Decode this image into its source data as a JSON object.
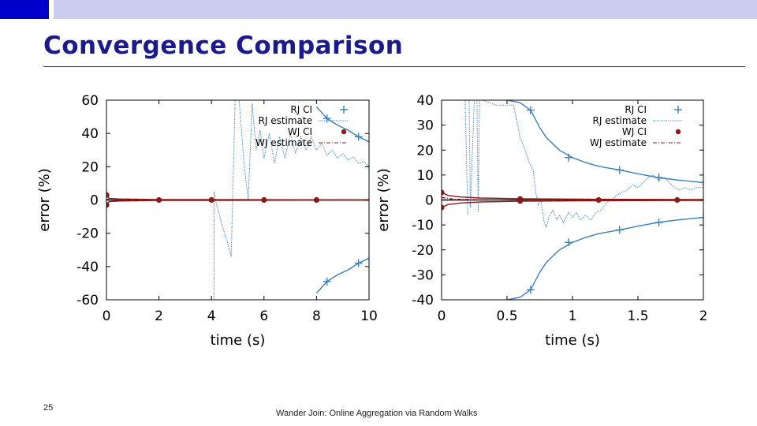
{
  "slide": {
    "title": "Convergence Comparison",
    "number": "25",
    "footer": "Wander Join: Online Aggregation via Random Walks"
  },
  "colors": {
    "accent_block": "#0000cc",
    "top_band": "#ccccee",
    "title": "#1a1a8c",
    "rj": "#3a7fbf",
    "wj": "#8b1a1a"
  },
  "chart_data": [
    {
      "type": "line",
      "xlabel": "time (s)",
      "ylabel": "error (%)",
      "xlim": [
        0,
        10
      ],
      "ylim": [
        -60,
        60
      ],
      "xticks": [
        0,
        2,
        4,
        6,
        8,
        10
      ],
      "yticks": [
        -60,
        -40,
        -20,
        0,
        20,
        40,
        60
      ],
      "grid": false,
      "legend_position": "top-right",
      "series": [
        {
          "name": "RJ CI",
          "style": "line-with-plus-markers",
          "color": "#3a7fbf",
          "upper": [
            [
              8.0,
              56
            ],
            [
              8.4,
              49
            ],
            [
              8.8,
              45
            ],
            [
              9.2,
              42
            ],
            [
              9.6,
              38
            ],
            [
              10.0,
              35
            ]
          ],
          "lower": [
            [
              8.0,
              -56
            ],
            [
              8.4,
              -49
            ],
            [
              8.8,
              -45
            ],
            [
              9.2,
              -42
            ],
            [
              9.6,
              -38
            ],
            [
              10.0,
              -35
            ]
          ],
          "markers": [
            [
              8.4,
              49
            ],
            [
              9.6,
              38
            ],
            [
              8.4,
              -49
            ],
            [
              9.6,
              -38
            ]
          ]
        },
        {
          "name": "RJ estimate",
          "style": "dotted",
          "color": "#3a7fbf",
          "points": [
            [
              4.0,
              -60
            ],
            [
              4.1,
              -60
            ],
            [
              4.1,
              5
            ],
            [
              4.15,
              0
            ],
            [
              4.4,
              -15
            ],
            [
              4.6,
              -25
            ],
            [
              4.75,
              -34
            ],
            [
              4.9,
              60
            ],
            [
              5.05,
              60
            ],
            [
              5.25,
              20
            ],
            [
              5.4,
              0
            ],
            [
              5.55,
              58
            ],
            [
              5.7,
              30
            ],
            [
              5.85,
              42
            ],
            [
              6.0,
              25
            ],
            [
              6.2,
              40
            ],
            [
              6.4,
              22
            ],
            [
              6.6,
              38
            ],
            [
              6.8,
              25
            ],
            [
              7.0,
              40
            ],
            [
              7.2,
              28
            ],
            [
              7.4,
              38
            ],
            [
              7.6,
              30
            ],
            [
              7.8,
              38
            ],
            [
              8.0,
              30
            ],
            [
              8.2,
              34
            ],
            [
              8.4,
              27
            ],
            [
              8.6,
              30
            ],
            [
              8.8,
              25
            ],
            [
              9.0,
              28
            ],
            [
              9.2,
              24
            ],
            [
              9.4,
              26
            ],
            [
              9.6,
              22
            ],
            [
              9.8,
              23
            ],
            [
              10.0,
              20
            ]
          ]
        },
        {
          "name": "WJ CI",
          "style": "line-with-dot-markers",
          "color": "#8b1a1a",
          "upper": [
            [
              0,
              3
            ],
            [
              0.1,
              1
            ],
            [
              0.5,
              0.6
            ],
            [
              2,
              0.3
            ],
            [
              10,
              0.1
            ]
          ],
          "lower": [
            [
              0,
              -3
            ],
            [
              0.1,
              -1
            ],
            [
              0.5,
              -0.6
            ],
            [
              2,
              -0.3
            ],
            [
              10,
              -0.1
            ]
          ],
          "markers": [
            [
              0,
              3
            ],
            [
              0,
              -3
            ],
            [
              2,
              0
            ],
            [
              4,
              0
            ],
            [
              6,
              0
            ],
            [
              8,
              0
            ]
          ]
        },
        {
          "name": "WJ estimate",
          "style": "dash-dot",
          "color": "#8b1a1a",
          "points": [
            [
              0,
              0.5
            ],
            [
              0.3,
              -0.3
            ],
            [
              1,
              0.1
            ],
            [
              10,
              0
            ]
          ]
        }
      ]
    },
    {
      "type": "line",
      "xlabel": "time (s)",
      "ylabel": "error (%)",
      "xlim": [
        0,
        2
      ],
      "ylim": [
        -40,
        40
      ],
      "xticks": [
        0,
        0.5,
        1,
        1.5,
        2
      ],
      "yticks": [
        -40,
        -30,
        -20,
        -10,
        0,
        10,
        20,
        30,
        40
      ],
      "grid": false,
      "legend_position": "top-right",
      "series": [
        {
          "name": "RJ CI",
          "style": "line-with-plus-markers",
          "color": "#3a7fbf",
          "upper": [
            [
              0.5,
              40
            ],
            [
              0.6,
              39
            ],
            [
              0.68,
              36
            ],
            [
              0.75,
              29
            ],
            [
              0.8,
              25
            ],
            [
              0.9,
              20
            ],
            [
              1.0,
              17
            ],
            [
              1.1,
              15
            ],
            [
              1.2,
              13.5
            ],
            [
              1.36,
              12
            ],
            [
              1.5,
              10.5
            ],
            [
              1.65,
              9
            ],
            [
              1.8,
              8
            ],
            [
              2.0,
              7
            ]
          ],
          "lower": [
            [
              0.5,
              -40
            ],
            [
              0.6,
              -39
            ],
            [
              0.68,
              -36
            ],
            [
              0.75,
              -29
            ],
            [
              0.8,
              -25
            ],
            [
              0.9,
              -20
            ],
            [
              1.0,
              -17
            ],
            [
              1.1,
              -15
            ],
            [
              1.2,
              -13.5
            ],
            [
              1.36,
              -12
            ],
            [
              1.5,
              -10.5
            ],
            [
              1.65,
              -9
            ],
            [
              1.8,
              -8
            ],
            [
              2.0,
              -7
            ]
          ],
          "markers": [
            [
              0.68,
              36
            ],
            [
              0.97,
              17
            ],
            [
              1.36,
              12
            ],
            [
              1.66,
              9
            ],
            [
              2.0,
              7
            ],
            [
              0.68,
              -36
            ],
            [
              0.97,
              -17
            ],
            [
              1.36,
              -12
            ],
            [
              1.66,
              -9
            ],
            [
              2.0,
              -7
            ]
          ]
        },
        {
          "name": "RJ estimate",
          "style": "dotted",
          "color": "#3a7fbf",
          "points": [
            [
              0.2,
              -6
            ],
            [
              0.18,
              40
            ],
            [
              0.21,
              40
            ],
            [
              0.22,
              -3
            ],
            [
              0.25,
              40
            ],
            [
              0.27,
              40
            ],
            [
              0.28,
              -5
            ],
            [
              0.29,
              40
            ],
            [
              0.31,
              40
            ],
            [
              0.42,
              38
            ],
            [
              0.55,
              38
            ],
            [
              0.6,
              25
            ],
            [
              0.64,
              20
            ],
            [
              0.67,
              15
            ],
            [
              0.7,
              12
            ],
            [
              0.72,
              3
            ],
            [
              0.74,
              -2
            ],
            [
              0.76,
              0
            ],
            [
              0.78,
              -8
            ],
            [
              0.8,
              -11
            ],
            [
              0.82,
              -7
            ],
            [
              0.85,
              -4
            ],
            [
              0.88,
              -8
            ],
            [
              0.9,
              -6
            ],
            [
              0.93,
              -9
            ],
            [
              0.97,
              -5
            ],
            [
              1.0,
              -7
            ],
            [
              1.03,
              -5
            ],
            [
              1.06,
              -8
            ],
            [
              1.1,
              -6
            ],
            [
              1.14,
              -8
            ],
            [
              1.18,
              -5
            ],
            [
              1.22,
              -4
            ],
            [
              1.26,
              -1
            ],
            [
              1.3,
              0
            ],
            [
              1.34,
              2
            ],
            [
              1.38,
              3
            ],
            [
              1.42,
              4
            ],
            [
              1.46,
              6
            ],
            [
              1.5,
              5
            ],
            [
              1.54,
              7
            ],
            [
              1.58,
              9
            ],
            [
              1.62,
              10
            ],
            [
              1.66,
              8
            ],
            [
              1.7,
              9
            ],
            [
              1.74,
              7
            ],
            [
              1.78,
              5
            ],
            [
              1.82,
              4
            ],
            [
              1.86,
              5
            ],
            [
              1.9,
              4
            ],
            [
              1.95,
              5
            ],
            [
              2.0,
              5
            ]
          ]
        },
        {
          "name": "WJ CI",
          "style": "line-with-dot-markers",
          "color": "#8b1a1a",
          "upper": [
            [
              0,
              3
            ],
            [
              0.05,
              1.8
            ],
            [
              0.15,
              1.2
            ],
            [
              0.3,
              0.8
            ],
            [
              0.6,
              0.5
            ],
            [
              1.2,
              0.3
            ],
            [
              2.0,
              0.2
            ]
          ],
          "lower": [
            [
              0,
              -3
            ],
            [
              0.05,
              -1.8
            ],
            [
              0.15,
              -1.2
            ],
            [
              0.3,
              -0.8
            ],
            [
              0.6,
              -0.5
            ],
            [
              1.2,
              -0.3
            ],
            [
              2.0,
              -0.2
            ]
          ],
          "markers": [
            [
              0,
              3
            ],
            [
              0,
              -3
            ],
            [
              0.6,
              0.4
            ],
            [
              0.6,
              -0.4
            ],
            [
              1.2,
              0
            ],
            [
              1.8,
              0
            ]
          ]
        },
        {
          "name": "WJ estimate",
          "style": "dash-dot",
          "color": "#8b1a1a",
          "points": [
            [
              0,
              1
            ],
            [
              0.1,
              0.3
            ],
            [
              0.3,
              0.1
            ],
            [
              2.0,
              0
            ]
          ]
        }
      ]
    }
  ]
}
